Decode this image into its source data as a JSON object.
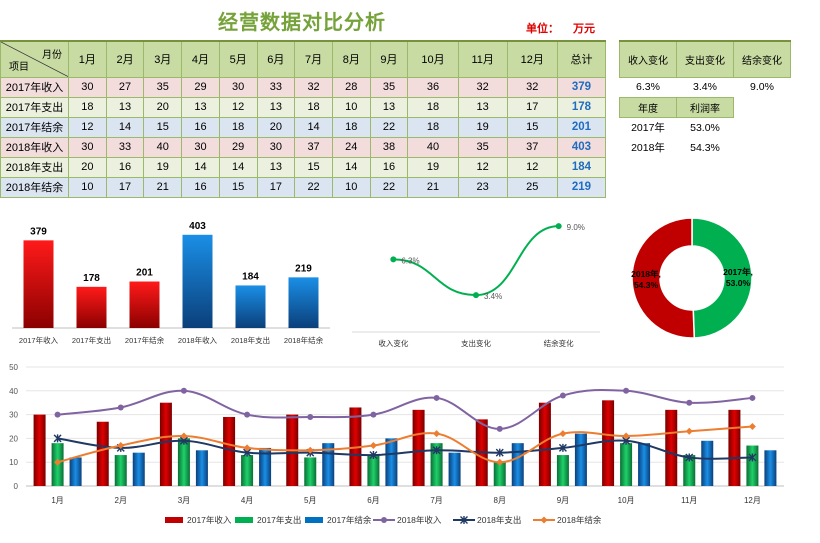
{
  "title": "经营数据对比分析",
  "unit_label": "单位：",
  "unit_value": "万元",
  "table": {
    "corner_month": "月份",
    "corner_item": "项目",
    "months": [
      "1月",
      "2月",
      "3月",
      "4月",
      "5月",
      "6月",
      "7月",
      "8月",
      "9月",
      "10月",
      "11月",
      "12月"
    ],
    "total_label": "总计",
    "rows": [
      {
        "label": "2017年收入",
        "kind": "income",
        "values": [
          30,
          27,
          35,
          29,
          30,
          33,
          32,
          28,
          35,
          36,
          32,
          32
        ],
        "total": "379"
      },
      {
        "label": "2017年支出",
        "kind": "expense",
        "values": [
          18,
          13,
          20,
          13,
          12,
          13,
          18,
          10,
          13,
          18,
          13,
          17
        ],
        "total": "178"
      },
      {
        "label": "2017年结余",
        "kind": "balance",
        "values": [
          12,
          14,
          15,
          16,
          18,
          20,
          14,
          18,
          22,
          18,
          19,
          15
        ],
        "total": "201"
      },
      {
        "label": "2018年收入",
        "kind": "income",
        "values": [
          30,
          33,
          40,
          30,
          29,
          30,
          37,
          24,
          38,
          40,
          35,
          37
        ],
        "total": "403"
      },
      {
        "label": "2018年支出",
        "kind": "expense",
        "values": [
          20,
          16,
          19,
          14,
          14,
          13,
          15,
          14,
          16,
          19,
          12,
          12
        ],
        "total": "184"
      },
      {
        "label": "2018年结余",
        "kind": "balance",
        "values": [
          10,
          17,
          21,
          16,
          15,
          17,
          22,
          10,
          22,
          21,
          23,
          25
        ],
        "total": "219"
      }
    ]
  },
  "change_table": {
    "headers": [
      "收入变化",
      "支出变化",
      "结余变化"
    ],
    "values": [
      "6.3%",
      "3.4%",
      "9.0%"
    ]
  },
  "profit_table": {
    "headers": [
      "年度",
      "利润率"
    ],
    "rows": [
      [
        "2017年",
        "53.0%"
      ],
      [
        "2018年",
        "54.3%"
      ]
    ]
  },
  "chart_data": [
    {
      "type": "bar",
      "categories": [
        "2017年收入",
        "2017年支出",
        "2017年结余",
        "2018年收入",
        "2018年支出",
        "2018年结余"
      ],
      "values": [
        379,
        178,
        201,
        403,
        184,
        219
      ],
      "data_labels": [
        "379",
        "178",
        "201",
        "403",
        "184",
        "219"
      ],
      "colors": [
        "#c00000",
        "#c00000",
        "#c00000",
        "#0070c0",
        "#0070c0",
        "#0070c0"
      ]
    },
    {
      "type": "line",
      "categories": [
        "收入变化",
        "支出变化",
        "结余变化"
      ],
      "values": [
        6.3,
        3.4,
        9.0
      ],
      "data_labels": [
        "6.3%",
        "3.4%",
        "9.0%"
      ],
      "color": "#00b050"
    },
    {
      "type": "pie",
      "style": "donut",
      "labels": [
        "2017年,53.0%",
        "2018年,54.3%"
      ],
      "values": [
        53.0,
        54.3
      ],
      "colors": [
        "#00b050",
        "#c00000"
      ]
    },
    {
      "type": "bar",
      "categories": [
        "1月",
        "2月",
        "3月",
        "4月",
        "5月",
        "6月",
        "7月",
        "8月",
        "9月",
        "10月",
        "11月",
        "12月"
      ],
      "ylim": [
        0,
        50
      ],
      "yticks": [
        0,
        10,
        20,
        30,
        40,
        50
      ],
      "grid": true,
      "legend": "bottom",
      "series": [
        {
          "name": "2017年收入",
          "kind": "bar",
          "color": "#c00000",
          "values": [
            30,
            27,
            35,
            29,
            30,
            33,
            32,
            28,
            35,
            36,
            32,
            32
          ]
        },
        {
          "name": "2017年支出",
          "kind": "bar",
          "color": "#00b050",
          "values": [
            18,
            13,
            20,
            13,
            12,
            13,
            18,
            10,
            13,
            18,
            13,
            17
          ]
        },
        {
          "name": "2017年结余",
          "kind": "bar",
          "color": "#0070c0",
          "values": [
            12,
            14,
            15,
            16,
            18,
            20,
            14,
            18,
            22,
            18,
            19,
            15
          ]
        },
        {
          "name": "2018年收入",
          "kind": "line",
          "marker": "circle",
          "color": "#8064a2",
          "values": [
            30,
            33,
            40,
            30,
            29,
            30,
            37,
            24,
            38,
            40,
            35,
            37
          ]
        },
        {
          "name": "2018年支出",
          "kind": "line",
          "marker": "star",
          "color": "#1f3864",
          "values": [
            20,
            16,
            19,
            14,
            14,
            13,
            15,
            14,
            16,
            19,
            12,
            12
          ]
        },
        {
          "name": "2018年结余",
          "kind": "line",
          "marker": "diamond",
          "color": "#ed7d31",
          "values": [
            10,
            17,
            21,
            16,
            15,
            17,
            22,
            10,
            22,
            21,
            23,
            25
          ]
        }
      ]
    }
  ]
}
